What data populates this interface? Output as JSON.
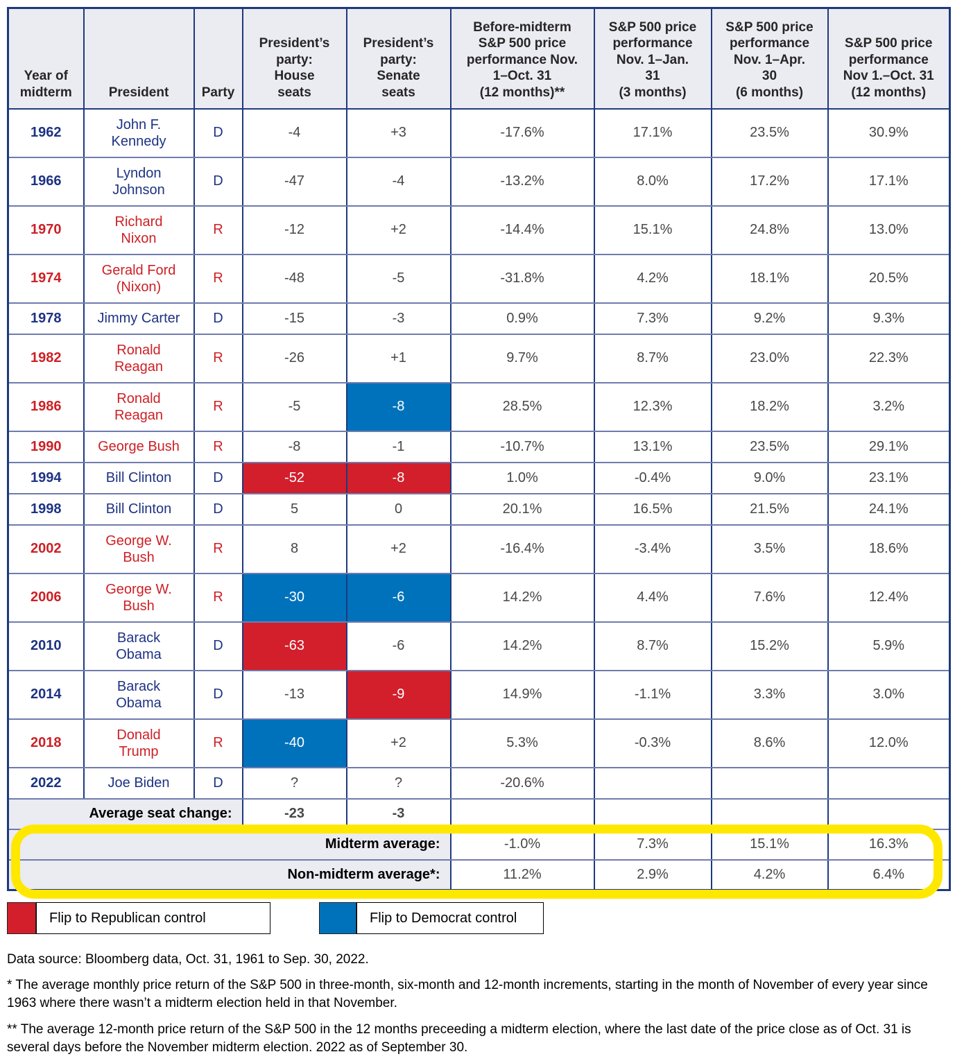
{
  "chart_data": {
    "type": "table",
    "headers": [
      "Year of\nmidterm",
      "President",
      "Party",
      "President’s\nparty:\nHouse\nseats",
      "President’s\nparty:\nSenate\nseats",
      "Before-midterm\nS&P 500 price\nperformance Nov.\n1–Oct. 31\n(12 months)**",
      "S&P 500 price\nperformance\nNov. 1–Jan.\n31\n(3 months)",
      "S&P 500 price\nperformance\nNov. 1–Apr.\n30\n(6 months)",
      "S&P 500 price\nperformance\nNov 1.–Oct. 31\n(12 months)"
    ],
    "rows": [
      {
        "year": "1962",
        "president": "John F.\nKennedy",
        "party": "D",
        "house": "-4",
        "senate": "+3",
        "house_flip": null,
        "senate_flip": null,
        "short": false,
        "perf": [
          "-17.6%",
          "17.1%",
          "23.5%",
          "30.9%"
        ]
      },
      {
        "year": "1966",
        "president": "Lyndon\nJohnson",
        "party": "D",
        "house": "-47",
        "senate": "-4",
        "house_flip": null,
        "senate_flip": null,
        "short": false,
        "perf": [
          "-13.2%",
          "8.0%",
          "17.2%",
          "17.1%"
        ]
      },
      {
        "year": "1970",
        "president": "Richard\nNixon",
        "party": "R",
        "house": "-12",
        "senate": "+2",
        "house_flip": null,
        "senate_flip": null,
        "short": false,
        "perf": [
          "-14.4%",
          "15.1%",
          "24.8%",
          "13.0%"
        ]
      },
      {
        "year": "1974",
        "president": "Gerald Ford\n(Nixon)",
        "party": "R",
        "house": "-48",
        "senate": "-5",
        "house_flip": null,
        "senate_flip": null,
        "short": false,
        "perf": [
          "-31.8%",
          "4.2%",
          "18.1%",
          "20.5%"
        ]
      },
      {
        "year": "1978",
        "president": "Jimmy Carter",
        "party": "D",
        "house": "-15",
        "senate": "-3",
        "house_flip": null,
        "senate_flip": null,
        "short": true,
        "perf": [
          "0.9%",
          "7.3%",
          "9.2%",
          "9.3%"
        ]
      },
      {
        "year": "1982",
        "president": "Ronald\nReagan",
        "party": "R",
        "house": "-26",
        "senate": "+1",
        "house_flip": null,
        "senate_flip": null,
        "short": false,
        "perf": [
          "9.7%",
          "8.7%",
          "23.0%",
          "22.3%"
        ]
      },
      {
        "year": "1986",
        "president": "Ronald\nReagan",
        "party": "R",
        "house": "-5",
        "senate": "-8",
        "house_flip": null,
        "senate_flip": "dem",
        "short": false,
        "perf": [
          "28.5%",
          "12.3%",
          "18.2%",
          "3.2%"
        ]
      },
      {
        "year": "1990",
        "president": "George Bush",
        "party": "R",
        "house": "-8",
        "senate": "-1",
        "house_flip": null,
        "senate_flip": null,
        "short": true,
        "perf": [
          "-10.7%",
          "13.1%",
          "23.5%",
          "29.1%"
        ]
      },
      {
        "year": "1994",
        "president": "Bill Clinton",
        "party": "D",
        "house": "-52",
        "senate": "-8",
        "house_flip": "rep",
        "senate_flip": "rep",
        "short": true,
        "perf": [
          "1.0%",
          "-0.4%",
          "9.0%",
          "23.1%"
        ]
      },
      {
        "year": "1998",
        "president": "Bill Clinton",
        "party": "D",
        "house": "5",
        "senate": "0",
        "house_flip": null,
        "senate_flip": null,
        "short": true,
        "perf": [
          "20.1%",
          "16.5%",
          "21.5%",
          "24.1%"
        ]
      },
      {
        "year": "2002",
        "president": "George W.\nBush",
        "party": "R",
        "house": "8",
        "senate": "+2",
        "house_flip": null,
        "senate_flip": null,
        "short": false,
        "perf": [
          "-16.4%",
          "-3.4%",
          "3.5%",
          "18.6%"
        ]
      },
      {
        "year": "2006",
        "president": "George W.\nBush",
        "party": "R",
        "house": "-30",
        "senate": "-6",
        "house_flip": "dem",
        "senate_flip": "dem",
        "short": false,
        "perf": [
          "14.2%",
          "4.4%",
          "7.6%",
          "12.4%"
        ]
      },
      {
        "year": "2010",
        "president": "Barack\nObama",
        "party": "D",
        "house": "-63",
        "senate": "-6",
        "house_flip": "rep",
        "senate_flip": null,
        "short": false,
        "perf": [
          "14.2%",
          "8.7%",
          "15.2%",
          "5.9%"
        ]
      },
      {
        "year": "2014",
        "president": "Barack\nObama",
        "party": "D",
        "house": "-13",
        "senate": "-9",
        "house_flip": null,
        "senate_flip": "rep",
        "short": false,
        "perf": [
          "14.9%",
          "-1.1%",
          "3.3%",
          "3.0%"
        ]
      },
      {
        "year": "2018",
        "president": "Donald\nTrump",
        "party": "R",
        "house": "-40",
        "senate": "+2",
        "house_flip": "dem",
        "senate_flip": null,
        "short": false,
        "perf": [
          "5.3%",
          "-0.3%",
          "8.6%",
          "12.0%"
        ]
      },
      {
        "year": "2022",
        "president": "Joe Biden",
        "party": "D",
        "house": "?",
        "senate": "?",
        "house_flip": null,
        "senate_flip": null,
        "short": true,
        "perf": [
          "-20.6%",
          "",
          "",
          ""
        ]
      }
    ],
    "summary": {
      "average_seat_change": {
        "label": "Average seat change:",
        "house": "-23",
        "senate": "-3"
      },
      "midterm_average": {
        "label": "Midterm average:",
        "values": [
          "-1.0%",
          "7.3%",
          "15.1%",
          "16.3%"
        ]
      },
      "non_midterm_average": {
        "label": "Non-midterm average*:",
        "values": [
          "11.2%",
          "2.9%",
          "4.2%",
          "6.4%"
        ]
      }
    }
  },
  "legend": [
    {
      "name": "republican",
      "label": "Flip to Republican control",
      "color": "#d21f2b"
    },
    {
      "name": "democrat",
      "label": "Flip to Democrat control",
      "color": "#0072bc"
    }
  ],
  "footnotes": {
    "source": "Data source: Bloomberg data, Oct. 31, 1961 to Sep. 30, 2022.",
    "star": "* The average monthly price return of the S&P 500 in three-month, six-month and 12-month increments, starting in the month of November of every year since 1963 where there wasn’t a midterm election held in that November.",
    "double_star": "** The average 12-month price return of the S&P 500 in the 12 months preceeding a midterm election, where the last date of the price close as of Oct. 31 is several days before the November midterm election. 2022 as of September 30."
  },
  "colors": {
    "flip_republican": "#d21f2b",
    "flip_democrat": "#0072bc",
    "democrat_text": "#1d3383",
    "republican_text": "#cd2026",
    "highlight_yellow": "#ffe800",
    "band_gray": "#ebebf2",
    "border_navy": "#1e3a7d",
    "border_slate": "#6f7bad",
    "value_text": "#474747"
  }
}
